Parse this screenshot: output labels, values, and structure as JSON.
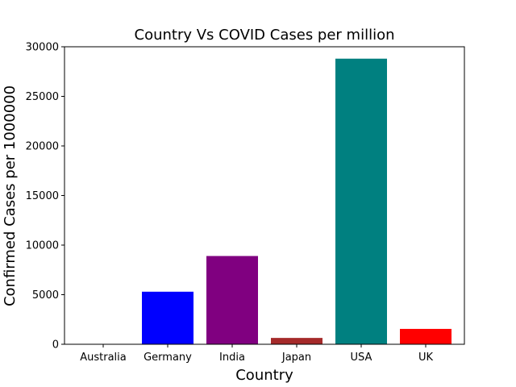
{
  "chart_data": {
    "type": "bar",
    "title": "Country Vs COVID Cases per million",
    "xlabel": "Country",
    "ylabel": "Confirmed Cases per 1000000",
    "categories": [
      "Australia",
      "Germany",
      "India",
      "Japan",
      "USA",
      "UK"
    ],
    "values": [
      20,
      5300,
      8900,
      640,
      28800,
      1550
    ],
    "colors": [
      "#1f77b4",
      "#0000ff",
      "#800080",
      "#a52a2a",
      "#008080",
      "#ff0000"
    ],
    "ylim": [
      0,
      30000
    ],
    "yticks": [
      0,
      5000,
      10000,
      15000,
      20000,
      25000,
      30000
    ],
    "grid": false
  }
}
